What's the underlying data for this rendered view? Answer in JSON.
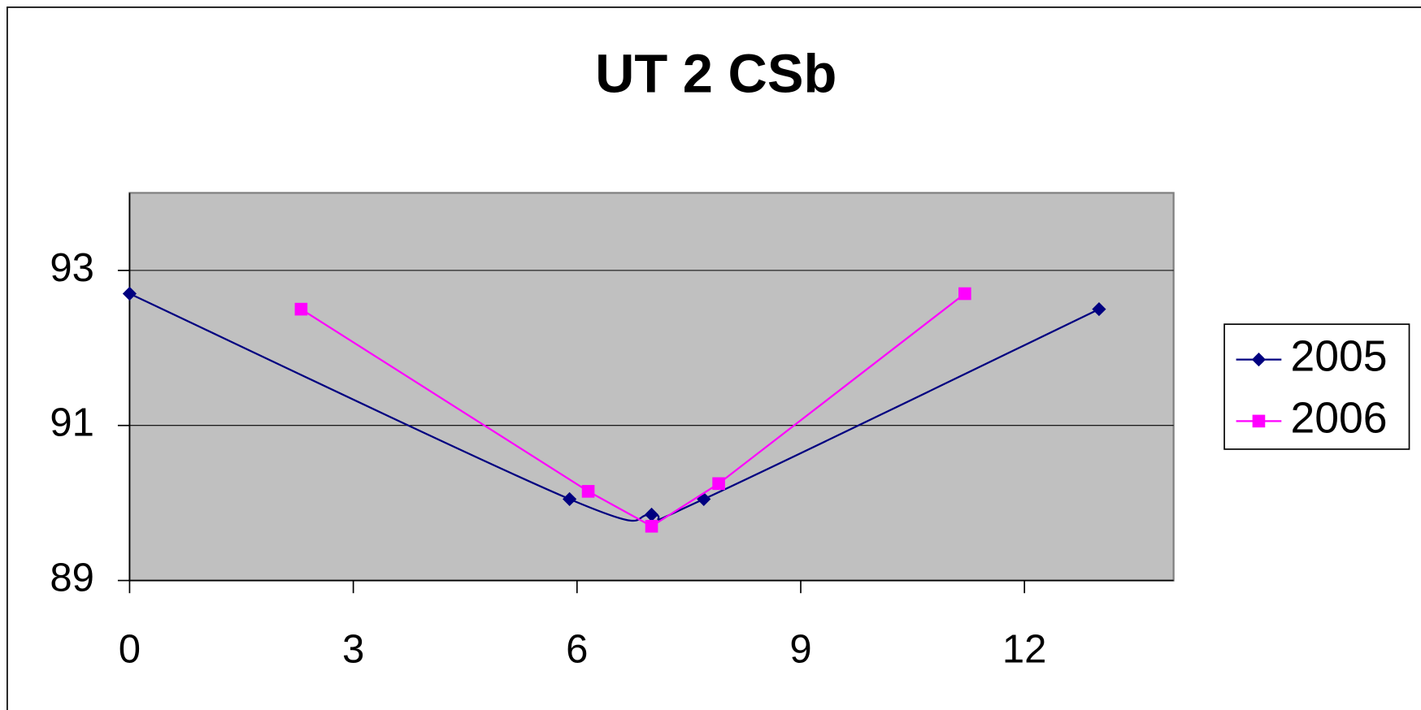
{
  "chart_data": {
    "type": "scatter",
    "title": "UT 2 CSb",
    "series": [
      {
        "name": "2005",
        "color": "#000080",
        "marker": "diamond",
        "smooth": true,
        "x": [
          0,
          5.9,
          7,
          7.7,
          13
        ],
        "values": [
          92.7,
          90.05,
          89.85,
          90.05,
          92.5
        ]
      },
      {
        "name": "2006",
        "color": "#ff00ff",
        "marker": "square",
        "smooth": false,
        "x": [
          2.3,
          6.15,
          7,
          7.9,
          11.2
        ],
        "values": [
          92.5,
          90.15,
          89.7,
          90.25,
          92.7
        ]
      }
    ],
    "xlim": [
      0,
      14
    ],
    "xticks": [
      0,
      3,
      6,
      9,
      12
    ],
    "ylim": [
      89,
      94
    ],
    "yticks": [
      89,
      91,
      93
    ],
    "grid": true,
    "legend": "right"
  }
}
